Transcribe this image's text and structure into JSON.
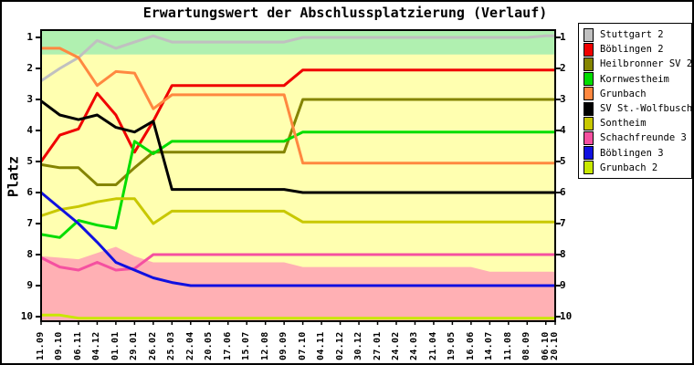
{
  "title": "Erwartungswert der Abschlussplatzierung (Verlauf)",
  "ylabel": "Platz",
  "chart_data": {
    "type": "line",
    "title": "Erwartungswert der Abschlussplatzierung (Verlauf)",
    "xlabel": "",
    "ylabel": "Platz",
    "y_axis_inverted": true,
    "y_ticks": [
      1,
      2,
      3,
      4,
      5,
      6,
      7,
      8,
      9,
      10
    ],
    "ylim_places": [
      0.76,
      10.15
    ],
    "grid": false,
    "legend_position": "top-right-outside",
    "x_labels": [
      "11.09",
      "09.10",
      "06.11",
      "04.12",
      "01.01",
      "29.01",
      "26.02",
      "25.03",
      "22.04",
      "20.05",
      "17.06",
      "15.07",
      "12.08",
      "09.09",
      "07.10",
      "04.11",
      "02.12",
      "30.12",
      "27.01",
      "24.02",
      "24.03",
      "21.04",
      "19.05",
      "16.06",
      "14.07",
      "11.08",
      "08.09",
      "06.10",
      "20.10"
    ],
    "x_days": [
      0,
      28,
      56,
      84,
      112,
      140,
      168,
      196,
      224,
      252,
      280,
      308,
      336,
      364,
      392,
      420,
      448,
      476,
      504,
      532,
      560,
      588,
      616,
      644,
      672,
      700,
      728,
      756,
      770
    ],
    "zones": {
      "promotion_green": {
        "color": "#b0f0b0",
        "to_place": 1.55
      },
      "middle_yellow": {
        "color": "#ffffb0"
      },
      "relegation_pink": {
        "color": "#ffb0b4",
        "boundary_places": [
          8.05,
          8.1,
          8.15,
          7.95,
          7.75,
          8.05,
          8.25,
          8.25,
          8.25,
          8.25,
          8.25,
          8.25,
          8.25,
          8.25,
          8.4,
          8.4,
          8.4,
          8.4,
          8.4,
          8.4,
          8.4,
          8.4,
          8.4,
          8.4,
          8.55,
          8.55,
          8.55,
          8.55,
          8.55
        ]
      }
    },
    "series": [
      {
        "name": "Stuttgart 2",
        "color": "#c0c0c0",
        "values": [
          2.4,
          2.0,
          1.65,
          1.1,
          1.35,
          1.15,
          0.95,
          1.15,
          1.15,
          1.15,
          1.15,
          1.15,
          1.15,
          1.15,
          1.0,
          1.0,
          1.0,
          1.0,
          1.0,
          1.0,
          1.0,
          1.0,
          1.0,
          1.0,
          1.0,
          1.0,
          1.0,
          0.95,
          0.95
        ]
      },
      {
        "name": "Böblingen 2",
        "color": "#f00000",
        "values": [
          5.0,
          4.15,
          3.95,
          2.8,
          3.5,
          4.7,
          3.7,
          2.55,
          2.55,
          2.55,
          2.55,
          2.55,
          2.55,
          2.55,
          2.05,
          2.05,
          2.05,
          2.05,
          2.05,
          2.05,
          2.05,
          2.05,
          2.05,
          2.05,
          2.05,
          2.05,
          2.05,
          2.05,
          2.05
        ]
      },
      {
        "name": "Heilbronner SV 2",
        "color": "#848400",
        "values": [
          5.1,
          5.2,
          5.2,
          5.75,
          5.75,
          5.2,
          4.7,
          4.7,
          4.7,
          4.7,
          4.7,
          4.7,
          4.7,
          4.7,
          3.0,
          3.0,
          3.0,
          3.0,
          3.0,
          3.0,
          3.0,
          3.0,
          3.0,
          3.0,
          3.0,
          3.0,
          3.0,
          3.0,
          3.0
        ]
      },
      {
        "name": "Kornwestheim",
        "color": "#00dd00",
        "values": [
          7.35,
          7.45,
          6.9,
          7.05,
          7.15,
          4.35,
          4.75,
          4.35,
          4.35,
          4.35,
          4.35,
          4.35,
          4.35,
          4.35,
          4.05,
          4.05,
          4.05,
          4.05,
          4.05,
          4.05,
          4.05,
          4.05,
          4.05,
          4.05,
          4.05,
          4.05,
          4.05,
          4.05,
          4.05
        ]
      },
      {
        "name": "Grunbach",
        "color": "#ff8840",
        "values": [
          1.35,
          1.35,
          1.65,
          2.55,
          2.1,
          2.15,
          3.3,
          2.85,
          2.85,
          2.85,
          2.85,
          2.85,
          2.85,
          2.85,
          5.05,
          5.05,
          5.05,
          5.05,
          5.05,
          5.05,
          5.05,
          5.05,
          5.05,
          5.05,
          5.05,
          5.05,
          5.05,
          5.05,
          5.05
        ]
      },
      {
        "name": "SV St.-Wolfbusch",
        "color": "#000000",
        "values": [
          3.05,
          3.5,
          3.65,
          3.5,
          3.9,
          4.05,
          3.7,
          5.9,
          5.9,
          5.9,
          5.9,
          5.9,
          5.9,
          5.9,
          6.0,
          6.0,
          6.0,
          6.0,
          6.0,
          6.0,
          6.0,
          6.0,
          6.0,
          6.0,
          6.0,
          6.0,
          6.0,
          6.0,
          6.0
        ]
      },
      {
        "name": "Sontheim",
        "color": "#c8c800",
        "values": [
          6.75,
          6.55,
          6.45,
          6.3,
          6.2,
          6.2,
          7.0,
          6.6,
          6.6,
          6.6,
          6.6,
          6.6,
          6.6,
          6.6,
          6.95,
          6.95,
          6.95,
          6.95,
          6.95,
          6.95,
          6.95,
          6.95,
          6.95,
          6.95,
          6.95,
          6.95,
          6.95,
          6.95,
          6.95
        ]
      },
      {
        "name": "Schachfreunde 3",
        "color": "#f550a0",
        "values": [
          8.1,
          8.4,
          8.5,
          8.25,
          8.5,
          8.45,
          8.0,
          8.0,
          8.0,
          8.0,
          8.0,
          8.0,
          8.0,
          8.0,
          8.0,
          8.0,
          8.0,
          8.0,
          8.0,
          8.0,
          8.0,
          8.0,
          8.0,
          8.0,
          8.0,
          8.0,
          8.0,
          8.0,
          8.0
        ]
      },
      {
        "name": "Böblingen 3",
        "color": "#1010e0",
        "values": [
          6.0,
          6.5,
          7.0,
          7.6,
          8.25,
          8.5,
          8.75,
          8.9,
          9.0,
          9.0,
          9.0,
          9.0,
          9.0,
          9.0,
          9.0,
          9.0,
          9.0,
          9.0,
          9.0,
          9.0,
          9.0,
          9.0,
          9.0,
          9.0,
          9.0,
          9.0,
          9.0,
          9.0,
          9.0
        ]
      },
      {
        "name": "Grunbach 2",
        "color": "#c8e800",
        "values": [
          9.95,
          9.95,
          10.05,
          10.05,
          10.05,
          10.05,
          10.05,
          10.05,
          10.05,
          10.05,
          10.05,
          10.05,
          10.05,
          10.05,
          10.05,
          10.05,
          10.05,
          10.05,
          10.05,
          10.05,
          10.05,
          10.05,
          10.05,
          10.05,
          10.05,
          10.05,
          10.05,
          10.05,
          10.05
        ]
      }
    ]
  }
}
